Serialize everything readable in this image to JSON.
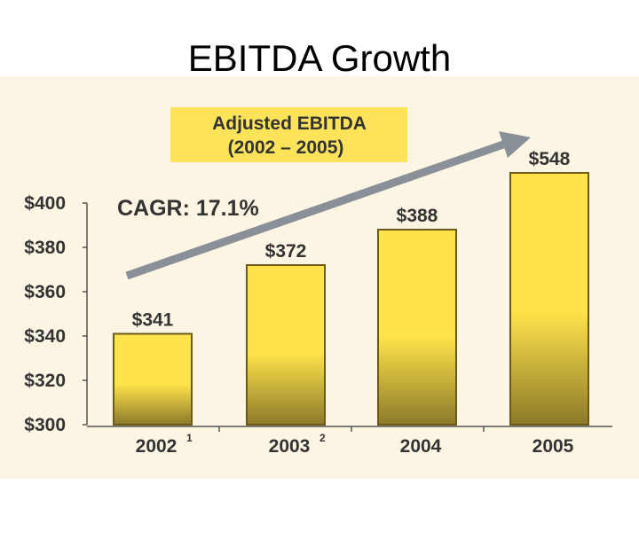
{
  "slide": {
    "title": "EBITDA Growth"
  },
  "chart_data": {
    "type": "bar",
    "title_line1": "Adjusted EBITDA",
    "title_line2": "(2002 – 2005)",
    "annotation": "CAGR: 17.1%",
    "categories": [
      "2002",
      "2003",
      "2004",
      "2005"
    ],
    "footnotes": [
      "1",
      "2",
      "",
      ""
    ],
    "values": [
      341,
      372,
      388,
      548
    ],
    "value_labels": [
      "$341",
      "$372",
      "$388",
      "$548"
    ],
    "y_ticks": [
      300,
      320,
      340,
      360,
      380,
      400
    ],
    "y_tick_labels": [
      "$300",
      "$320",
      "$340",
      "$360",
      "$380",
      "$400"
    ],
    "ylim": [
      300,
      400
    ],
    "xlabel": "",
    "ylabel": "",
    "grid": false,
    "colors": {
      "panel_bg": "#fdf5e4",
      "bar_top": "#ffe34a",
      "bar_bottom": "#8c7a2a",
      "bar_stroke": "#6b5a18",
      "title_box": "#fde35a",
      "arrow": "#8a9097",
      "axis": "#555555"
    }
  }
}
